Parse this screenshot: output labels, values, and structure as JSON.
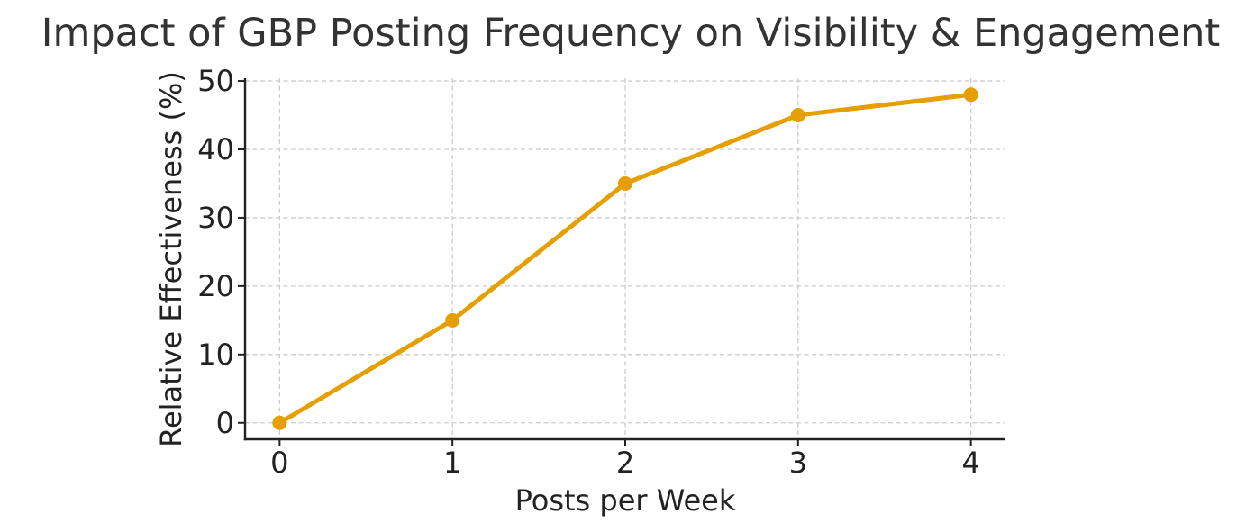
{
  "chart_data": {
    "type": "line",
    "title": "Impact of GBP Posting Frequency on Visibility & Engagement",
    "xlabel": "Posts per Week",
    "ylabel": "Relative Effectiveness (%)",
    "x": [
      0,
      1,
      2,
      3,
      4
    ],
    "x_tick_labels": [
      "0",
      "1",
      "2",
      "3",
      "4"
    ],
    "y_tick_values": [
      0,
      10,
      20,
      30,
      40,
      50
    ],
    "y_tick_labels": [
      "0",
      "10",
      "20",
      "30",
      "40",
      "50"
    ],
    "xlim": [
      -0.2,
      4.2
    ],
    "ylim": [
      -2.4,
      50.4
    ],
    "grid": true,
    "series": [
      {
        "values": [
          0,
          15,
          35,
          45,
          48
        ],
        "color": "#E69F00",
        "marker": "circle"
      }
    ]
  }
}
